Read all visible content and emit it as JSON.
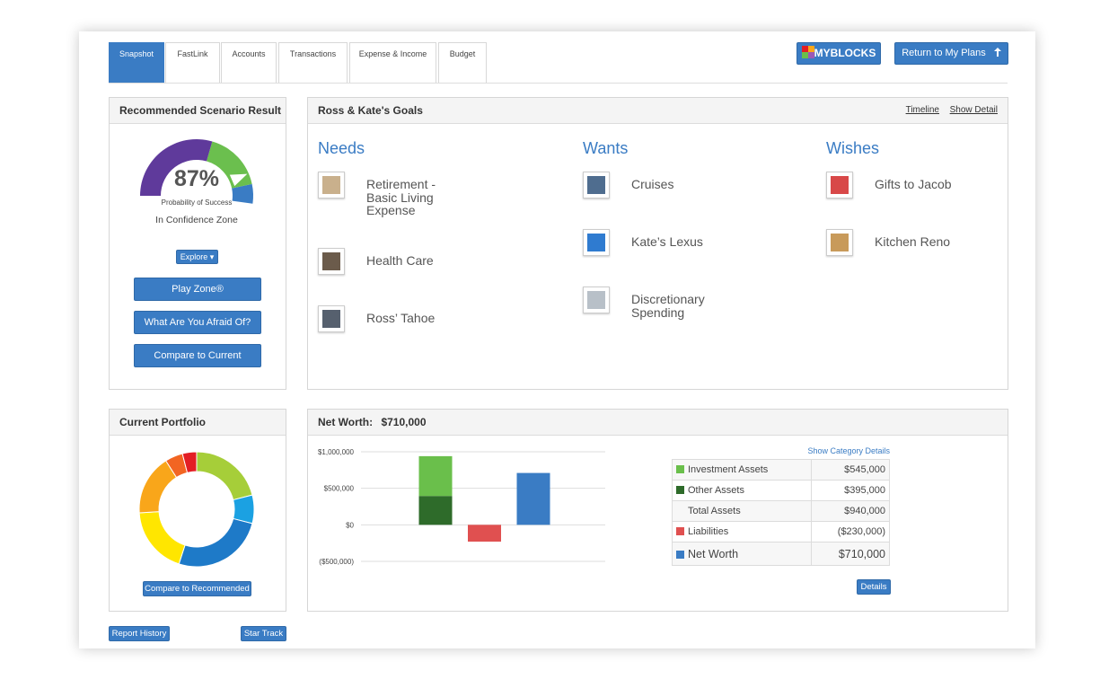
{
  "tabs": [
    "Snapshot",
    "FastLink",
    "Accounts",
    "Transactions",
    "Expense & Income",
    "Budget"
  ],
  "header_buttons": {
    "myblocks": "MYBLOCKS",
    "return": "Return to My Plans"
  },
  "scenario": {
    "title": "Recommended Scenario Result",
    "gauge": {
      "value": 87,
      "label": "87%"
    },
    "caption": "Probability of Success",
    "status": "In Confidence Zone",
    "explore": "Explore",
    "buttons": [
      "Play Zone®",
      "What Are You Afraid Of?",
      "Compare to Current"
    ]
  },
  "goals": {
    "title": "Ross & Kate's Goals",
    "links": [
      "Timeline",
      "Show Detail"
    ],
    "groups": [
      {
        "heading": "Needs",
        "items": [
          "Retirement - Basic Living Expense",
          "Health Care",
          "Ross’ Tahoe"
        ]
      },
      {
        "heading": "Wants",
        "items": [
          "Cruises",
          "Kate’s Lexus",
          "Discretionary Spending"
        ]
      },
      {
        "heading": "Wishes",
        "items": [
          "Gifts to Jacob",
          "Kitchen Reno"
        ]
      }
    ]
  },
  "portfolio": {
    "title": "Current Portfolio",
    "button": "Compare to Recommended"
  },
  "net_worth": {
    "title": "Net Worth:",
    "link": "Show Category Details",
    "total_row": {
      "name": "Total Assets",
      "label": "$940,000"
    },
    "button": "Details"
  },
  "footer": [
    "Report History",
    "Star Track"
  ],
  "chart_data": [
    {
      "type": "bar",
      "stacked": true,
      "categories": [
        null,
        null,
        null
      ],
      "ylim": [
        -500000,
        1000000
      ],
      "yticks": [
        {
          "value": 1000000,
          "label": "$1,000,000"
        },
        {
          "value": 500000,
          "label": "$500,000"
        },
        {
          "value": 0,
          "label": "$0"
        },
        {
          "value": -500000,
          "label": "($500,000)"
        }
      ],
      "grid": true,
      "series": [
        {
          "name": "Investment Assets",
          "color": "#6abf4b",
          "values": [
            545000,
            null,
            null
          ],
          "value_labels": [
            "$545,000",
            null,
            null
          ]
        },
        {
          "name": "Other Assets",
          "color": "#2e6b2a",
          "values": [
            395000,
            null,
            null
          ],
          "value_labels": [
            "$395,000",
            null,
            null
          ]
        },
        {
          "name": "Liabilities",
          "color": "#e05050",
          "values": [
            null,
            -230000,
            null
          ],
          "value_labels": [
            null,
            "($230,000)",
            null
          ]
        },
        {
          "name": "Net Worth",
          "color": "#3a7cc4",
          "values": [
            null,
            null,
            710000
          ],
          "value_labels": [
            null,
            null,
            "$710,000"
          ]
        }
      ]
    },
    {
      "type": "donut",
      "values": [
        21,
        8,
        26,
        19,
        17,
        5,
        4
      ],
      "colors": [
        "#a6ce39",
        "#1ba1e2",
        "#1e7ac8",
        "#ffe600",
        "#f9a61a",
        "#f26522",
        "#e31e24"
      ]
    }
  ]
}
